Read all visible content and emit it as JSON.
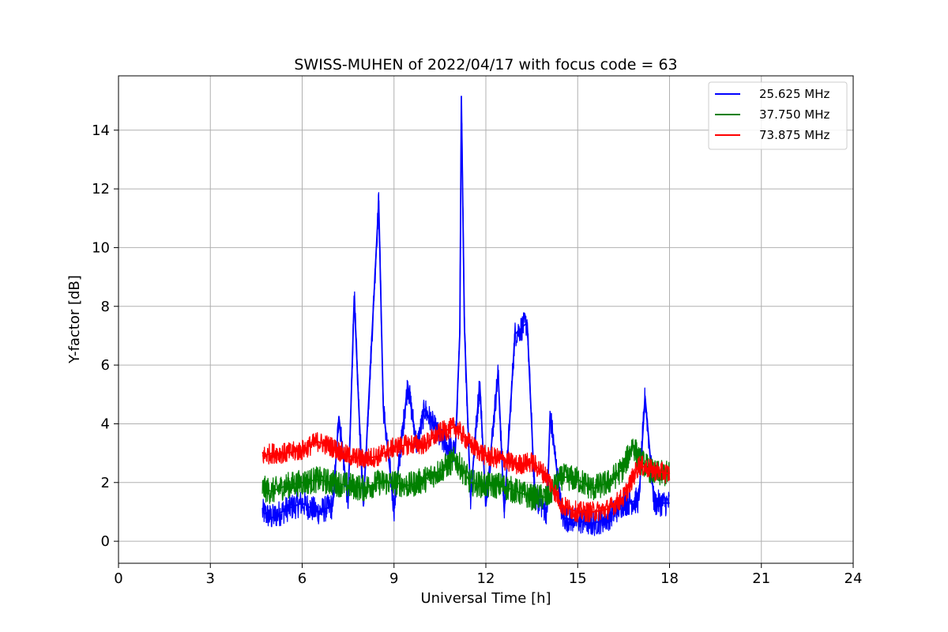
{
  "chart_data": {
    "type": "line",
    "title": "SWISS-MUHEN of 2022/04/17 with focus code = 63",
    "xlabel": "Universal Time [h]",
    "ylabel": "Y-factor [dB]",
    "xlim": [
      0,
      24
    ],
    "ylim": [
      -0.75,
      15.85
    ],
    "xticks": [
      0,
      3,
      6,
      9,
      12,
      15,
      18,
      21,
      24
    ],
    "yticks": [
      0,
      2,
      4,
      6,
      8,
      10,
      12,
      14
    ],
    "grid": true,
    "legend_position": "top-right",
    "series": [
      {
        "name": "25.625 MHz",
        "color": "#0000ff",
        "points": [
          [
            4.7,
            1.0
          ],
          [
            5.0,
            0.8
          ],
          [
            5.5,
            1.1
          ],
          [
            6.0,
            1.3
          ],
          [
            6.5,
            1.0
          ],
          [
            7.0,
            1.2
          ],
          [
            7.2,
            4.25
          ],
          [
            7.5,
            1.3
          ],
          [
            7.7,
            8.35
          ],
          [
            7.85,
            4.55
          ],
          [
            8.0,
            1.2
          ],
          [
            8.5,
            11.6
          ],
          [
            8.65,
            4.55
          ],
          [
            9.0,
            1.1
          ],
          [
            9.45,
            5.35
          ],
          [
            9.75,
            3.2
          ],
          [
            10.0,
            4.5
          ],
          [
            10.5,
            3.5
          ],
          [
            11.0,
            3.0
          ],
          [
            11.15,
            7.1
          ],
          [
            11.2,
            15.15
          ],
          [
            11.3,
            7.3
          ],
          [
            11.5,
            1.5
          ],
          [
            11.8,
            5.4
          ],
          [
            12.0,
            1.2
          ],
          [
            12.4,
            5.75
          ],
          [
            12.6,
            1.0
          ],
          [
            12.95,
            7.05
          ],
          [
            13.35,
            7.45
          ],
          [
            13.6,
            1.5
          ],
          [
            14.0,
            1.0
          ],
          [
            14.1,
            4.35
          ],
          [
            14.5,
            0.8
          ],
          [
            15.0,
            0.7
          ],
          [
            15.5,
            0.6
          ],
          [
            16.0,
            0.8
          ],
          [
            16.5,
            1.3
          ],
          [
            17.0,
            1.4
          ],
          [
            17.2,
            4.95
          ],
          [
            17.5,
            1.3
          ],
          [
            18.0,
            1.3
          ]
        ]
      },
      {
        "name": "37.750 MHz",
        "color": "#008000",
        "points": [
          [
            4.7,
            1.8
          ],
          [
            5.0,
            1.7
          ],
          [
            5.5,
            1.9
          ],
          [
            6.0,
            2.0
          ],
          [
            6.5,
            2.1
          ],
          [
            7.0,
            2.0
          ],
          [
            7.5,
            1.9
          ],
          [
            8.0,
            1.8
          ],
          [
            8.5,
            2.0
          ],
          [
            9.0,
            2.0
          ],
          [
            9.5,
            1.9
          ],
          [
            10.0,
            2.1
          ],
          [
            10.5,
            2.4
          ],
          [
            11.0,
            2.8
          ],
          [
            11.5,
            2.0
          ],
          [
            12.0,
            1.9
          ],
          [
            12.5,
            1.9
          ],
          [
            13.0,
            1.7
          ],
          [
            13.5,
            1.5
          ],
          [
            14.0,
            1.5
          ],
          [
            14.5,
            2.2
          ],
          [
            15.0,
            2.1
          ],
          [
            15.5,
            1.8
          ],
          [
            16.0,
            2.0
          ],
          [
            16.5,
            2.5
          ],
          [
            16.8,
            3.3
          ],
          [
            17.0,
            2.8
          ],
          [
            17.5,
            2.3
          ],
          [
            18.0,
            2.3
          ]
        ]
      },
      {
        "name": "73.875 MHz",
        "color": "#ff0000",
        "points": [
          [
            4.7,
            2.9
          ],
          [
            5.0,
            3.0
          ],
          [
            5.5,
            3.0
          ],
          [
            6.0,
            3.1
          ],
          [
            6.5,
            3.4
          ],
          [
            7.0,
            3.2
          ],
          [
            7.5,
            2.9
          ],
          [
            8.0,
            2.8
          ],
          [
            8.5,
            2.9
          ],
          [
            9.0,
            3.2
          ],
          [
            9.5,
            3.3
          ],
          [
            10.0,
            3.3
          ],
          [
            10.5,
            3.7
          ],
          [
            11.0,
            3.9
          ],
          [
            11.5,
            3.3
          ],
          [
            12.0,
            2.9
          ],
          [
            12.5,
            2.8
          ],
          [
            13.0,
            2.6
          ],
          [
            13.5,
            2.7
          ],
          [
            14.0,
            2.2
          ],
          [
            14.5,
            1.2
          ],
          [
            15.0,
            1.0
          ],
          [
            15.5,
            1.0
          ],
          [
            16.0,
            1.1
          ],
          [
            16.5,
            1.5
          ],
          [
            17.0,
            2.6
          ],
          [
            17.5,
            2.4
          ],
          [
            18.0,
            2.3
          ]
        ]
      }
    ]
  }
}
